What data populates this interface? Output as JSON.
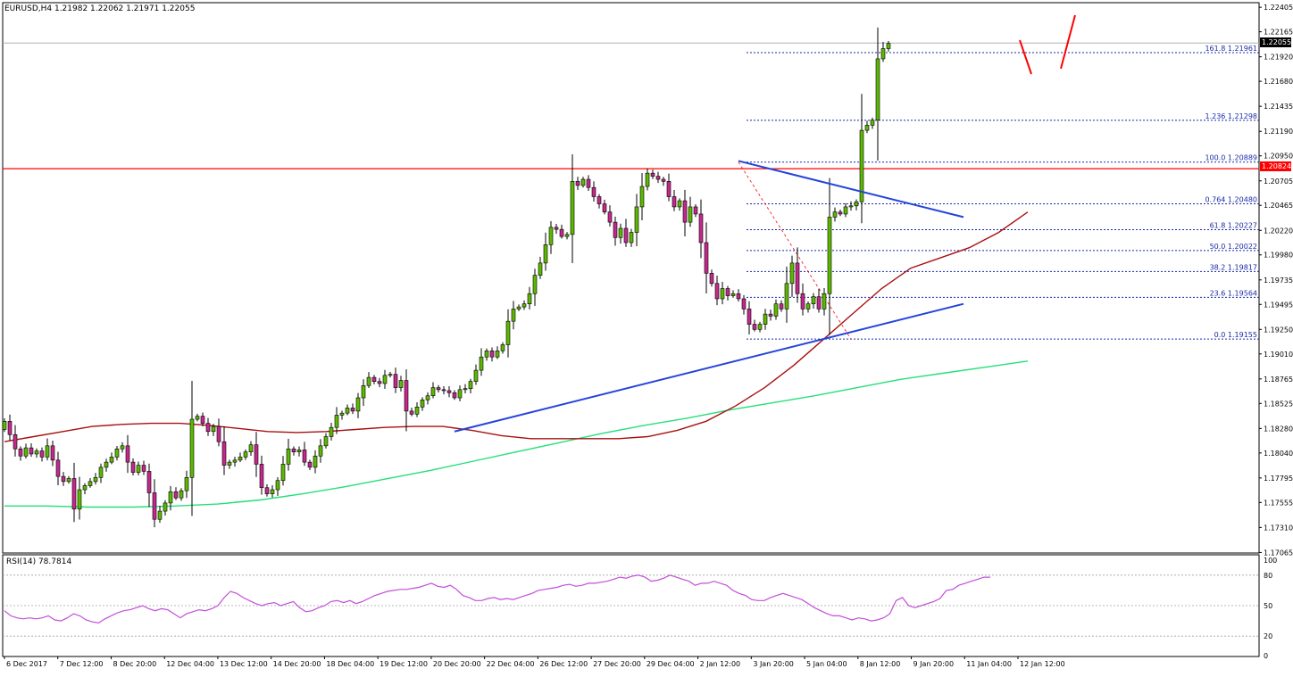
{
  "header": {
    "symbol_line": "EURUSD,H4  1.21982 1.22062 1.21971 1.22055",
    "rsi_label": "RSI(14) 78.7814"
  },
  "colors": {
    "bull": "#5cb800",
    "bear": "#c4288c",
    "ma_fast": "#a81010",
    "ma_slow": "#23e07a",
    "trendline": "#2244dd",
    "resistance": "#ff0000",
    "fib": "#1a2aa8",
    "rsi": "#c24fd8",
    "arrow": "#ff0000"
  },
  "chart_data": {
    "type": "candlestick",
    "symbol": "EURUSD",
    "timeframe": "H4",
    "ohlc_current": {
      "open": 1.21982,
      "high": 1.22062,
      "low": 1.21971,
      "close": 1.22055
    },
    "y_ticks": [
      "1.22405",
      "1.22165",
      "1.21920",
      "1.21680",
      "1.21435",
      "1.21190",
      "1.20950",
      "1.20705",
      "1.20465",
      "1.20220",
      "1.19980",
      "1.19735",
      "1.19495",
      "1.19250",
      "1.19010",
      "1.18765",
      "1.18525",
      "1.18280",
      "1.18040",
      "1.17795",
      "1.17555",
      "1.17310",
      "1.17065"
    ],
    "ylim": [
      1.1706,
      1.2245
    ],
    "x_ticks": [
      "6 Dec 2017",
      "7 Dec 12:00",
      "8 Dec 20:00",
      "12 Dec 04:00",
      "13 Dec 12:00",
      "14 Dec 20:00",
      "18 Dec 04:00",
      "19 Dec 12:00",
      "20 Dec 20:00",
      "22 Dec 04:00",
      "26 Dec 12:00",
      "27 Dec 20:00",
      "29 Dec 04:00",
      "2 Jan 12:00",
      "3 Jan 20:00",
      "5 Jan 04:00",
      "8 Jan 12:00",
      "9 Jan 20:00",
      "11 Jan 04:00",
      "12 Jan 12:00"
    ],
    "current_price_label": "1.22055",
    "current_price": 1.22055,
    "resistance_price_label": "1.20824",
    "resistance_price": 1.20824,
    "fib_levels": [
      {
        "label": "161.8  1.21961",
        "price": 1.21961
      },
      {
        "label": "1.236  1.21298",
        "price": 1.21298
      },
      {
        "label": "100.0  1.20889",
        "price": 1.20889
      },
      {
        "label": "0.764  1.20480",
        "price": 1.2048
      },
      {
        "label": "61.8  1.20227",
        "price": 1.20227
      },
      {
        "label": "50.0  1.20022",
        "price": 1.20022
      },
      {
        "label": "38.2  1.19817",
        "price": 1.19817
      },
      {
        "label": "23.6  1.19564",
        "price": 1.19564
      },
      {
        "label": "0.0  1.19155",
        "price": 1.19155
      }
    ],
    "closes": [
      1.1835,
      1.1822,
      1.1808,
      1.1801,
      1.1809,
      1.1803,
      1.1806,
      1.18,
      1.1811,
      1.1797,
      1.1781,
      1.1776,
      1.1779,
      1.1749,
      1.1768,
      1.1772,
      1.1776,
      1.178,
      1.179,
      1.1795,
      1.18,
      1.1808,
      1.1811,
      1.1795,
      1.1785,
      1.1792,
      1.1786,
      1.1765,
      1.1739,
      1.1747,
      1.1755,
      1.1766,
      1.176,
      1.1767,
      1.178,
      1.1837,
      1.184,
      1.1833,
      1.1825,
      1.183,
      1.1815,
      1.1792,
      1.1795,
      1.1797,
      1.18,
      1.1805,
      1.1812,
      1.1793,
      1.177,
      1.1764,
      1.1768,
      1.1777,
      1.1793,
      1.1808,
      1.1805,
      1.1807,
      1.1795,
      1.179,
      1.1801,
      1.1811,
      1.182,
      1.1829,
      1.1841,
      1.1843,
      1.1848,
      1.1845,
      1.1858,
      1.187,
      1.1878,
      1.1874,
      1.1872,
      1.188,
      1.1881,
      1.1868,
      1.1875,
      1.1845,
      1.1842,
      1.1849,
      1.1856,
      1.186,
      1.1868,
      1.1866,
      1.1865,
      1.1863,
      1.1858,
      1.1866,
      1.1867,
      1.1874,
      1.1885,
      1.1898,
      1.1904,
      1.1898,
      1.1904,
      1.191,
      1.1933,
      1.1945,
      1.1947,
      1.195,
      1.196,
      1.1978,
      1.199,
      1.2008,
      1.2025,
      1.2023,
      1.2016,
      1.2018,
      1.207,
      1.2066,
      1.2072,
      1.2064,
      1.2055,
      1.2048,
      1.204,
      1.203,
      1.2015,
      1.2024,
      1.201,
      1.202,
      1.2045,
      1.2065,
      1.2078,
      1.2075,
      1.2072,
      1.207,
      1.2055,
      1.2045,
      1.2051,
      1.203,
      1.2045,
      1.2038,
      1.201,
      1.198,
      1.197,
      1.1955,
      1.1965,
      1.1958,
      1.196,
      1.1955,
      1.1945,
      1.193,
      1.1925,
      1.193,
      1.194,
      1.1938,
      1.195,
      1.1945,
      1.197,
      1.199,
      1.196,
      1.1945,
      1.195,
      1.1957,
      1.1945,
      1.196,
      1.2035,
      1.204,
      1.2038,
      1.2045,
      1.2046,
      1.205,
      1.212,
      1.2125,
      1.213,
      1.219,
      1.22,
      1.2205
    ],
    "ma_fast": [
      1.1815,
      1.182,
      1.1825,
      1.183,
      1.1832,
      1.1833,
      1.1833,
      1.1831,
      1.1828,
      1.1825,
      1.1824,
      1.1825,
      1.1827,
      1.1829,
      1.183,
      1.183,
      1.1826,
      1.1821,
      1.1818,
      1.1818,
      1.1818,
      1.1818,
      1.182,
      1.1826,
      1.1835,
      1.185,
      1.1868,
      1.189,
      1.1915,
      1.194,
      1.1965,
      1.1985,
      1.1995,
      1.2005,
      1.202,
      1.204
    ],
    "ma_slow": [
      1.1752,
      1.1752,
      1.1751,
      1.1751,
      1.1752,
      1.1754,
      1.1758,
      1.1764,
      1.1771,
      1.1779,
      1.1787,
      1.1796,
      1.1805,
      1.1814,
      1.1823,
      1.1831,
      1.1838,
      1.1846,
      1.1853,
      1.186,
      1.1868,
      1.1876,
      1.1882,
      1.1888,
      1.1894
    ],
    "trendline_support": {
      "from": {
        "index": 84,
        "price": 1.1825
      },
      "to": {
        "index": 179,
        "price": 1.195
      }
    },
    "trendline_resistance": {
      "from": {
        "index": 137,
        "price": 1.209
      },
      "to": {
        "index": 179,
        "price": 1.2035
      }
    },
    "fib_swing": {
      "from": {
        "index": 137,
        "price": 1.20889
      },
      "to": {
        "index": 158,
        "price": 1.19155
      }
    },
    "rsi": {
      "name": "RSI(14)",
      "last": 78.7814,
      "levels": [
        80,
        50,
        20
      ],
      "scale_labels": [
        "100",
        "80",
        "50",
        "20",
        "0"
      ],
      "values": [
        45,
        40,
        38,
        37,
        38,
        37,
        38,
        40,
        36,
        35,
        38,
        42,
        40,
        36,
        34,
        33,
        37,
        40,
        43,
        45,
        46,
        48,
        50,
        47,
        45,
        47,
        46,
        42,
        38,
        42,
        44,
        46,
        45,
        47,
        50,
        58,
        64,
        62,
        58,
        55,
        52,
        50,
        52,
        53,
        50,
        52,
        54,
        48,
        44,
        45,
        48,
        50,
        54,
        55,
        53,
        55,
        52,
        54,
        57,
        60,
        62,
        64,
        65,
        66,
        66,
        67,
        68,
        70,
        72,
        69,
        68,
        70,
        66,
        60,
        58,
        55,
        55,
        57,
        58,
        56,
        57,
        56,
        58,
        60,
        62,
        65,
        66,
        67,
        68,
        70,
        71,
        69,
        70,
        72,
        72,
        73,
        74,
        76,
        78,
        77,
        79,
        80,
        78,
        74,
        75,
        77,
        80,
        78,
        76,
        74,
        70,
        72,
        72,
        74,
        72,
        70,
        65,
        62,
        60,
        56,
        55,
        55,
        58,
        60,
        62,
        60,
        58,
        56,
        52,
        48,
        45,
        42,
        40,
        40,
        38,
        36,
        38,
        37,
        35,
        36,
        38,
        42,
        55,
        58,
        50,
        48,
        50,
        52,
        54,
        57,
        65,
        66,
        70,
        72,
        74,
        76,
        78,
        78
      ]
    }
  }
}
